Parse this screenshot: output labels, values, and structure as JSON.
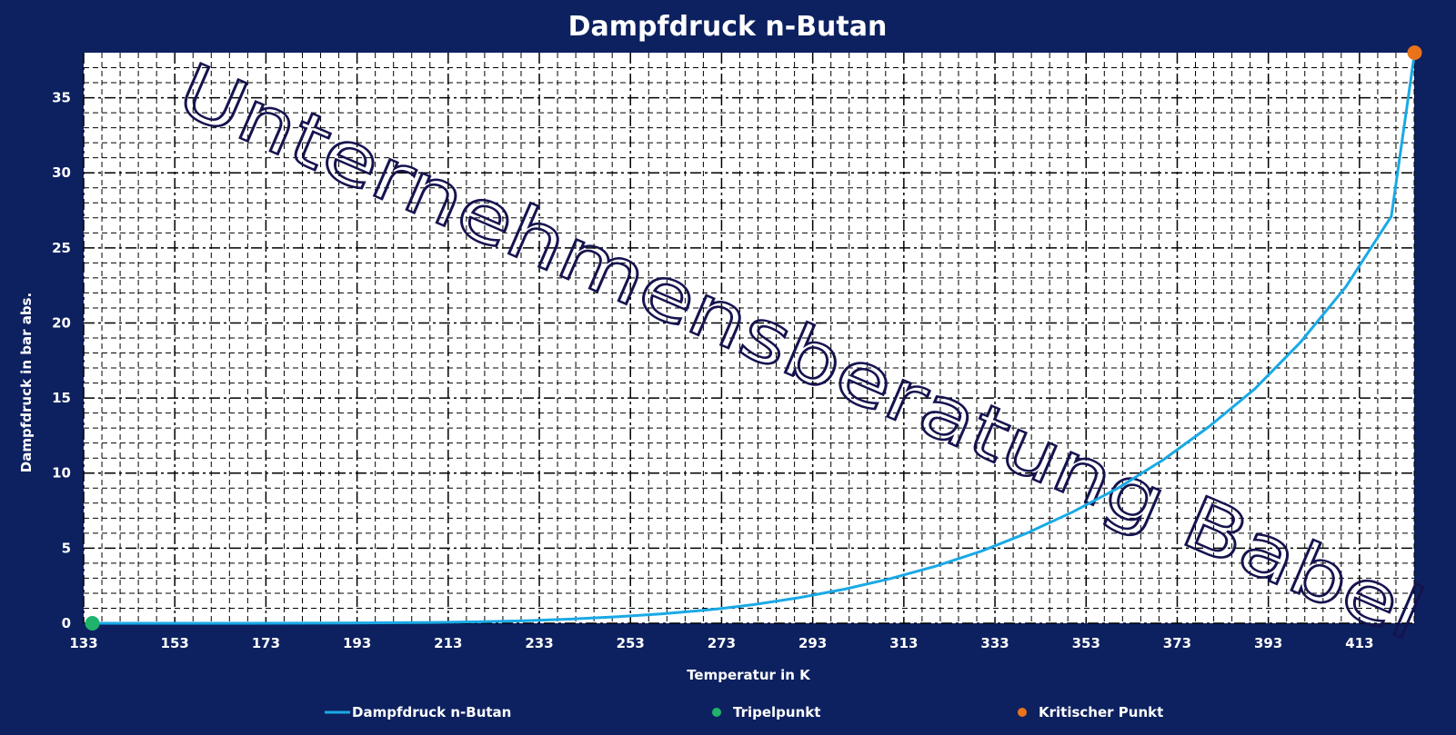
{
  "chart_data": {
    "type": "line",
    "title": "Dampfdruck n-Butan",
    "xlabel": "Temperatur in K",
    "ylabel": "Dampfdruck in bar abs.",
    "xlim": [
      133,
      425
    ],
    "ylim": [
      0,
      38
    ],
    "x_ticks": [
      "133",
      "153",
      "173",
      "193",
      "213",
      "233",
      "253",
      "273",
      "293",
      "313",
      "333",
      "353",
      "373",
      "393",
      "413"
    ],
    "y_ticks": [
      "0",
      "5",
      "10",
      "15",
      "20",
      "25",
      "30",
      "35"
    ],
    "grid": true,
    "legend_position": "bottom",
    "series": [
      {
        "name": "Dampfdruck n-Butan",
        "color": "#1aa9e6",
        "x": [
          134.9,
          150,
          170,
          190,
          210,
          220,
          230,
          240,
          250,
          260,
          270,
          273,
          280,
          290,
          300,
          310,
          320,
          330,
          340,
          350,
          360,
          370,
          380,
          390,
          400,
          410,
          420,
          425.1
        ],
        "y": [
          6.7e-06,
          0.0001,
          0.0016,
          0.012,
          0.052,
          0.098,
          0.17,
          0.28,
          0.43,
          0.63,
          0.89,
          0.98,
          1.24,
          1.7,
          2.27,
          2.97,
          3.8,
          4.8,
          6.0,
          7.4,
          9.0,
          10.9,
          13.1,
          15.6,
          18.7,
          22.4,
          27.1,
          38.0
        ]
      },
      {
        "name": "Tripelpunkt",
        "color": "#1fb36b",
        "x": [
          134.9
        ],
        "y": [
          6.7e-06
        ]
      },
      {
        "name": "Kritischer Punkt",
        "color": "#e8731a",
        "x": [
          425.1
        ],
        "y": [
          38.0
        ]
      }
    ],
    "watermark": "Unternehmensberatung Babel"
  }
}
